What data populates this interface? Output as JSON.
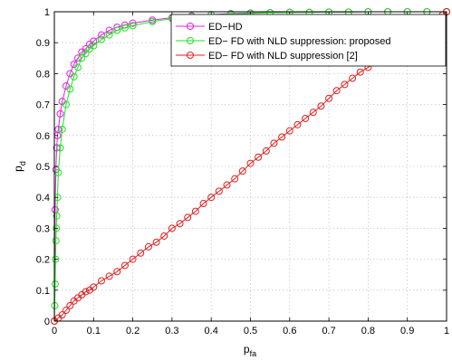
{
  "chart_data": {
    "type": "line",
    "title": "",
    "xlabel_base": "p",
    "xlabel_sub": "fa",
    "ylabel_base": "p",
    "ylabel_sub": "d",
    "xlim": [
      0,
      1
    ],
    "ylim": [
      0,
      1
    ],
    "xticks": [
      "0",
      "0.1",
      "0.2",
      "0.3",
      "0.4",
      "0.5",
      "0.6",
      "0.7",
      "0.8",
      "0.9",
      "1"
    ],
    "yticks": [
      "0",
      "0.1",
      "0.2",
      "0.3",
      "0.4",
      "0.5",
      "0.6",
      "0.7",
      "0.8",
      "0.9",
      "1"
    ],
    "grid": true,
    "legend_position": "top-right",
    "series": [
      {
        "name": "ED−HD",
        "color": "#e020e0",
        "x": [
          0,
          0.002,
          0.004,
          0.006,
          0.008,
          0.01,
          0.015,
          0.02,
          0.03,
          0.04,
          0.05,
          0.06,
          0.07,
          0.08,
          0.09,
          0.1,
          0.12,
          0.14,
          0.16,
          0.18,
          0.2,
          0.25,
          0.3,
          0.35,
          0.4,
          0.45,
          0.5,
          0.55,
          0.6,
          0.65,
          0.7,
          0.75,
          0.8,
          0.85,
          0.9,
          0.95,
          1.0
        ],
        "y": [
          0,
          0.36,
          0.49,
          0.56,
          0.6,
          0.62,
          0.67,
          0.71,
          0.76,
          0.8,
          0.83,
          0.85,
          0.87,
          0.88,
          0.895,
          0.905,
          0.925,
          0.94,
          0.95,
          0.957,
          0.963,
          0.973,
          0.981,
          0.987,
          0.991,
          0.994,
          0.996,
          0.997,
          0.998,
          0.998,
          0.999,
          0.999,
          1,
          1,
          1,
          1,
          1
        ]
      },
      {
        "name": "ED− FD with NLD suppression: proposed",
        "color": "#20e020",
        "x": [
          0,
          0.001,
          0.002,
          0.003,
          0.004,
          0.005,
          0.006,
          0.008,
          0.01,
          0.015,
          0.02,
          0.03,
          0.04,
          0.05,
          0.06,
          0.07,
          0.08,
          0.09,
          0.1,
          0.12,
          0.14,
          0.16,
          0.18,
          0.2,
          0.25,
          0.3,
          0.35,
          0.4,
          0.45,
          0.5,
          0.55,
          0.6,
          0.65,
          0.7,
          0.75,
          0.8,
          0.85,
          0.9,
          0.95,
          1.0
        ],
        "y": [
          0,
          0.05,
          0.12,
          0.2,
          0.26,
          0.3,
          0.34,
          0.4,
          0.48,
          0.56,
          0.62,
          0.7,
          0.75,
          0.79,
          0.82,
          0.85,
          0.865,
          0.88,
          0.89,
          0.91,
          0.925,
          0.94,
          0.948,
          0.955,
          0.968,
          0.978,
          0.985,
          0.99,
          0.993,
          0.995,
          0.997,
          0.998,
          0.998,
          0.999,
          0.999,
          1,
          1,
          1,
          1,
          1
        ]
      },
      {
        "name": "ED− FD with NLD suppression [2]",
        "color": "#e02020",
        "x": [
          0,
          0.01,
          0.02,
          0.03,
          0.04,
          0.05,
          0.06,
          0.07,
          0.08,
          0.09,
          0.1,
          0.12,
          0.14,
          0.16,
          0.18,
          0.2,
          0.22,
          0.24,
          0.26,
          0.28,
          0.3,
          0.32,
          0.34,
          0.36,
          0.38,
          0.4,
          0.42,
          0.44,
          0.46,
          0.48,
          0.5,
          0.52,
          0.54,
          0.56,
          0.58,
          0.6,
          0.62,
          0.64,
          0.66,
          0.68,
          0.7,
          0.72,
          0.74,
          0.76,
          0.78,
          0.8,
          0.82,
          0.84,
          0.86,
          0.88,
          0.9,
          0.92,
          0.94,
          0.96,
          0.98,
          0.99,
          1.0
        ],
        "y": [
          0,
          0.01,
          0.02,
          0.035,
          0.05,
          0.065,
          0.075,
          0.085,
          0.095,
          0.1,
          0.11,
          0.13,
          0.145,
          0.16,
          0.18,
          0.2,
          0.22,
          0.24,
          0.255,
          0.275,
          0.3,
          0.315,
          0.335,
          0.355,
          0.38,
          0.4,
          0.42,
          0.44,
          0.46,
          0.485,
          0.51,
          0.53,
          0.55,
          0.575,
          0.595,
          0.615,
          0.635,
          0.655,
          0.675,
          0.695,
          0.72,
          0.745,
          0.765,
          0.785,
          0.805,
          0.82,
          0.84,
          0.86,
          0.88,
          0.9,
          0.92,
          0.935,
          0.95,
          0.965,
          0.98,
          0.99,
          1.0
        ]
      }
    ]
  }
}
